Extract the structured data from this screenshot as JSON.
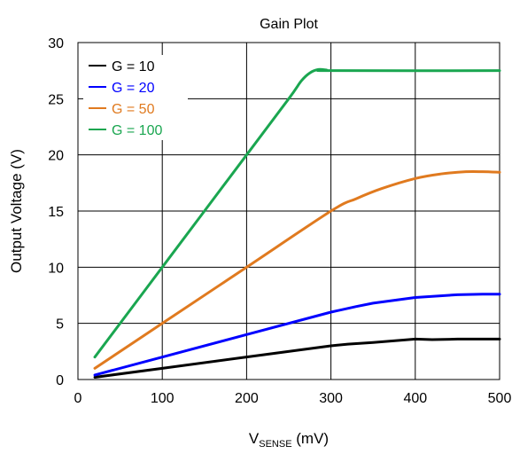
{
  "chart_data": {
    "type": "line",
    "title": "Gain Plot",
    "xlabel": "V",
    "xlabel_sub": "SENSE",
    "xlabel_unit": " (mV)",
    "ylabel": "Output Voltage (V)",
    "xlim": [
      0,
      500
    ],
    "ylim": [
      0,
      30
    ],
    "x_ticks": [
      "0",
      "100",
      "200",
      "300",
      "400",
      "500"
    ],
    "y_ticks": [
      "0",
      "5",
      "10",
      "15",
      "20",
      "25",
      "30"
    ],
    "grid": true,
    "legend_position": "top-left",
    "series": [
      {
        "name": "G = 10",
        "color": "#000000",
        "x": [
          20,
          100,
          200,
          300,
          320,
          350,
          400,
          420,
          450,
          500
        ],
        "y": [
          0.2,
          1.0,
          2.0,
          3.0,
          3.15,
          3.3,
          3.6,
          3.55,
          3.6,
          3.6
        ]
      },
      {
        "name": "G = 20",
        "color": "#0000ff",
        "x": [
          20,
          100,
          200,
          300,
          330,
          350,
          400,
          450,
          480,
          500
        ],
        "y": [
          0.4,
          2.0,
          4.0,
          6.0,
          6.5,
          6.8,
          7.3,
          7.55,
          7.6,
          7.6
        ]
      },
      {
        "name": "G = 50",
        "color": "#e07a1f",
        "x": [
          20,
          100,
          200,
          300,
          330,
          360,
          400,
          430,
          460,
          480,
          500
        ],
        "y": [
          1.0,
          5.0,
          10.0,
          15.0,
          16.1,
          17.0,
          17.9,
          18.3,
          18.5,
          18.5,
          18.45
        ],
        "smooth": true
      },
      {
        "name": "G = 100",
        "color": "#1aa650",
        "x": [
          20,
          100,
          200,
          250,
          265,
          275,
          285,
          295,
          300,
          500
        ],
        "y": [
          2.0,
          10.0,
          20.0,
          25.0,
          26.6,
          27.3,
          27.6,
          27.55,
          27.5,
          27.5
        ],
        "smooth": true
      }
    ]
  }
}
